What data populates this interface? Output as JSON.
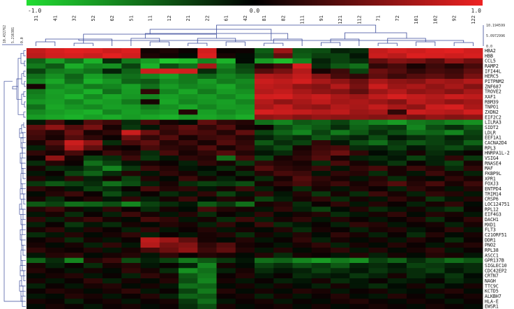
{
  "chart_data": {
    "type": "heatmap",
    "color_scale": {
      "min": -1.0,
      "mid": 0.0,
      "max": 1.0,
      "min_label": "-1.0",
      "mid_label": "0.0",
      "max_label": "1.0",
      "low_color": "#22dd33",
      "mid_color": "#000000",
      "high_color": "#ee2222"
    },
    "columns": [
      "31",
      "41",
      "32",
      "52",
      "62",
      "51",
      "11",
      "12",
      "21",
      "22",
      "61",
      "42",
      "81",
      "82",
      "111",
      "91",
      "121",
      "112",
      "71",
      "72",
      "101",
      "102",
      "92",
      "122"
    ],
    "rows": [
      "HBA2",
      "HBB",
      "CCL5",
      "RAMP2",
      "IFI44L",
      "HERC5",
      "PITPNM2",
      "ZNF687",
      "TROVE2",
      "XAF1",
      "RBM39",
      "TNPO1",
      "ZXDN2",
      "EIF2C2",
      "LILRA3",
      "SIDT2",
      "LDLR",
      "EEF1A1",
      "CACNA2D4",
      "RPL3",
      "HNRPA1L-2",
      "VSIG4",
      "RNASE4",
      "MAF",
      "FKBP9L",
      "XPR1",
      "FOXJ3",
      "ENTPD4",
      "TRIM14",
      "CRSP6",
      "LOC124751",
      "RPL12",
      "EIF4G3",
      "DACH1",
      "MXD1",
      "FLT3",
      "C21ORF51",
      "DDR1",
      "PNO2",
      "RPL38",
      "ASCC1",
      "GPR137B",
      "SIGLEC10",
      "CDC42EP2",
      "CRTN7",
      "NAGH",
      "TTC9C",
      "KCTD5",
      "ALKBH7",
      "HLA-E",
      "EWSR1"
    ],
    "col_dendrogram_scale": [
      "10.194599",
      "5.0972996",
      "0.0"
    ],
    "row_dendrogram_scale": [
      "10.432762",
      "5.216381",
      "0.0"
    ],
    "values": [
      [
        0.82,
        0.9,
        0.95,
        0.93,
        0.86,
        0.92,
        0.08,
        0.12,
        0.05,
        0.88,
        0.04,
        0.06,
        -0.42,
        0.65,
        -0.38,
        -0.35,
        -0.15,
        -0.2,
        0.82,
        0.9,
        0.86,
        0.92,
        0.95,
        0.88
      ],
      [
        0.78,
        0.88,
        0.9,
        0.84,
        0.95,
        0.88,
        0.12,
        0.08,
        -0.05,
        0.92,
        0.1,
        -0.05,
        -0.35,
        0.4,
        -0.42,
        -0.28,
        -0.3,
        -0.1,
        0.85,
        0.78,
        0.92,
        0.9,
        0.86,
        0.9
      ],
      [
        -0.45,
        -0.7,
        -0.5,
        -0.8,
        -0.2,
        -0.55,
        -0.7,
        -0.9,
        -0.85,
        -0.6,
        -0.8,
        -0.05,
        -0.7,
        -0.85,
        -0.6,
        -0.15,
        -0.3,
        -0.2,
        0.4,
        0.55,
        0.5,
        0.35,
        0.6,
        0.45
      ],
      [
        -0.55,
        -0.4,
        -0.78,
        -0.6,
        -0.65,
        -0.3,
        -0.8,
        -0.35,
        -0.5,
        0.7,
        -0.6,
        -0.3,
        0.15,
        0.3,
        0.9,
        -0.2,
        -0.4,
        -0.5,
        0.2,
        0.3,
        0.1,
        0.25,
        0.15,
        0.3
      ],
      [
        -0.3,
        -0.55,
        -0.6,
        -0.5,
        -0.15,
        -0.45,
        0.85,
        0.9,
        0.88,
        -0.2,
        -0.5,
        -0.35,
        0.35,
        0.5,
        0.75,
        0.1,
        0.25,
        -0.3,
        0.45,
        0.35,
        0.2,
        0.3,
        0.25,
        0.4
      ],
      [
        -0.5,
        -0.65,
        -0.45,
        -0.72,
        -0.58,
        -0.5,
        -0.6,
        -0.72,
        -0.55,
        -0.45,
        -0.6,
        -0.5,
        0.75,
        0.7,
        0.82,
        0.55,
        0.3,
        0.2,
        0.4,
        0.25,
        0.35,
        0.4,
        0.3,
        0.5
      ],
      [
        -0.6,
        -0.75,
        -0.5,
        -0.8,
        -0.68,
        -0.45,
        -0.4,
        -0.62,
        -0.55,
        -0.7,
        -0.55,
        -0.62,
        0.85,
        0.8,
        0.88,
        0.7,
        0.6,
        0.45,
        0.7,
        0.6,
        0.55,
        0.7,
        0.65,
        0.75
      ],
      [
        0.1,
        -0.62,
        -0.7,
        -0.55,
        -0.6,
        -0.72,
        -0.5,
        -0.7,
        -0.6,
        -0.65,
        -0.75,
        -0.58,
        0.8,
        0.75,
        0.6,
        0.55,
        0.75,
        0.5,
        0.85,
        0.65,
        0.72,
        0.6,
        0.7,
        0.55
      ],
      [
        -0.55,
        -0.72,
        -0.65,
        -0.8,
        -0.5,
        -0.7,
        0.2,
        -0.6,
        -0.75,
        -0.55,
        -0.7,
        -0.65,
        0.75,
        0.82,
        0.7,
        0.6,
        0.55,
        0.4,
        0.65,
        0.75,
        0.6,
        0.65,
        0.55,
        0.7
      ],
      [
        -0.6,
        -0.7,
        -0.8,
        -0.62,
        -0.75,
        -0.68,
        -0.6,
        -0.72,
        -0.65,
        -0.7,
        -0.6,
        -0.72,
        0.88,
        0.9,
        0.78,
        0.85,
        0.72,
        0.65,
        0.8,
        0.9,
        0.82,
        0.75,
        0.85,
        0.8
      ],
      [
        -0.68,
        -0.72,
        -0.6,
        -0.75,
        -0.7,
        -0.55,
        0.1,
        -0.75,
        -0.6,
        -0.68,
        -0.72,
        -0.6,
        0.75,
        0.6,
        0.7,
        0.8,
        0.68,
        0.72,
        0.65,
        0.55,
        0.78,
        0.7,
        0.6,
        0.68
      ],
      [
        -0.5,
        -0.75,
        -0.68,
        -0.62,
        -0.72,
        -0.7,
        -0.55,
        -0.65,
        -0.75,
        -0.6,
        -0.7,
        -0.68,
        0.7,
        0.82,
        0.65,
        0.6,
        0.75,
        0.7,
        0.82,
        0.7,
        0.6,
        0.85,
        0.9,
        0.72
      ],
      [
        -0.62,
        -0.7,
        -0.75,
        -0.8,
        -0.6,
        -0.72,
        -0.65,
        -0.7,
        0.15,
        -0.72,
        -0.62,
        -0.7,
        0.9,
        0.85,
        0.82,
        0.75,
        0.8,
        0.65,
        0.7,
        0.2,
        0.85,
        0.8,
        0.75,
        0.88
      ],
      [
        -0.7,
        -0.75,
        -0.8,
        -0.72,
        -0.78,
        -0.7,
        -0.75,
        -0.8,
        -0.72,
        -0.75,
        -0.7,
        -0.78,
        0.6,
        0.65,
        0.55,
        0.62,
        0.58,
        0.6,
        0.55,
        0.6,
        0.5,
        0.62,
        0.55,
        0.6
      ],
      [
        -0.1,
        0.3,
        -0.05,
        0.35,
        0.25,
        -0.2,
        0.3,
        0.1,
        -0.05,
        0.4,
        0.2,
        0.15,
        -0.5,
        -0.6,
        -0.4,
        -0.45,
        -0.3,
        -0.5,
        -0.6,
        -0.7,
        -0.55,
        -0.5,
        -0.6,
        -0.65
      ],
      [
        0.4,
        0.6,
        0.35,
        0.5,
        0.1,
        -0.25,
        -0.1,
        0.25,
        0.4,
        0.2,
        0.35,
        0.1,
        0.05,
        -0.35,
        -0.5,
        -0.4,
        -0.2,
        -0.45,
        -0.3,
        -0.25,
        -0.6,
        -0.35,
        -0.2,
        -0.4
      ],
      [
        0.3,
        0.15,
        0.45,
        0.1,
        0.2,
        0.85,
        0.45,
        0.2,
        0.35,
        0.3,
        0.15,
        0.4,
        -0.3,
        -0.45,
        -0.6,
        -0.3,
        -0.55,
        -0.4,
        -0.2,
        -0.35,
        -0.5,
        -0.45,
        -0.6,
        -0.3
      ],
      [
        0.25,
        0.1,
        0.35,
        0.2,
        0.05,
        0.45,
        0.2,
        0.35,
        0.1,
        0.25,
        0.3,
        0.15,
        -0.15,
        -0.3,
        -0.2,
        -0.4,
        -0.25,
        -0.15,
        -0.35,
        -0.1,
        -0.2,
        -0.3,
        -0.15,
        -0.25
      ],
      [
        0.1,
        0.35,
        0.85,
        0.6,
        -0.2,
        0.3,
        0.4,
        0.15,
        0.25,
        0.1,
        0.35,
        0.2,
        -0.4,
        -0.2,
        -0.3,
        0.2,
        -0.1,
        -0.35,
        -0.5,
        -0.25,
        -0.4,
        -0.3,
        -0.2,
        -0.45
      ],
      [
        -0.15,
        0.2,
        0.75,
        0.4,
        0.1,
        0.05,
        0.3,
        0.2,
        0.15,
        0.35,
        0.1,
        0.25,
        -0.2,
        -0.35,
        0.1,
        0.25,
        0.3,
        -0.2,
        -0.15,
        -0.3,
        -0.1,
        -0.25,
        -0.35,
        -0.2
      ],
      [
        0.2,
        0.1,
        0.3,
        0.05,
        0.25,
        0.15,
        -0.2,
        0.3,
        0.1,
        0.2,
        0.35,
        0.15,
        -0.1,
        -0.2,
        0.15,
        0.3,
        0.45,
        0.2,
        -0.05,
        -0.15,
        0.1,
        -0.2,
        -0.1,
        0.05
      ],
      [
        0.05,
        0.6,
        0.1,
        -0.3,
        -0.2,
        0.25,
        -0.25,
        -0.1,
        0.2,
        0.15,
        -0.5,
        0.3,
        -0.3,
        0.1,
        0.2,
        0.35,
        0.1,
        -0.15,
        -0.2,
        -0.1,
        -0.3,
        -0.15,
        0.2,
        -0.25
      ],
      [
        -0.2,
        0.15,
        0.05,
        -0.5,
        -0.3,
        -0.1,
        0.1,
        0.05,
        -0.15,
        0.2,
        0.1,
        -0.25,
        0.2,
        0.15,
        0.1,
        -0.2,
        0.3,
        0.1,
        -0.1,
        -0.25,
        0.05,
        -0.15,
        -0.3,
        0.1
      ],
      [
        0.1,
        -0.2,
        -0.15,
        -0.3,
        -0.6,
        -0.25,
        0.25,
        0.15,
        -0.1,
        -0.05,
        -0.2,
        0.1,
        0.35,
        0.2,
        0.15,
        0.25,
        -0.1,
        0.2,
        0.3,
        0.1,
        0.25,
        0.15,
        -0.2,
        0.2
      ],
      [
        -0.1,
        0.05,
        -0.3,
        -0.45,
        -0.2,
        0.15,
        -0.1,
        0.2,
        0.1,
        -0.15,
        0.05,
        -0.2,
        0.15,
        0.3,
        0.25,
        -0.1,
        0.2,
        0.15,
        -0.2,
        0.1,
        -0.1,
        0.25,
        0.1,
        -0.15
      ],
      [
        0.15,
        -0.1,
        0.2,
        -0.15,
        0.1,
        -0.3,
        0.15,
        -0.05,
        0.25,
        0.1,
        -0.15,
        0.05,
        -0.2,
        0.1,
        0.35,
        0.2,
        0.1,
        -0.1,
        0.15,
        -0.2,
        0.1,
        -0.05,
        0.2,
        0.1
      ],
      [
        -0.25,
        -0.4,
        -0.3,
        -0.2,
        -0.5,
        -0.35,
        -0.15,
        0.1,
        -0.2,
        -0.3,
        -0.25,
        -0.35,
        0.1,
        0.2,
        0.3,
        0.15,
        0.25,
        0.1,
        0.2,
        0.35,
        0.15,
        0.3,
        0.1,
        0.25
      ],
      [
        0.2,
        0.1,
        -0.1,
        -0.3,
        -0.2,
        0.05,
        0.3,
        0.15,
        0.2,
        -0.1,
        0.1,
        0.25,
        -0.15,
        0.05,
        -0.2,
        0.1,
        -0.1,
        0.15,
        0.05,
        -0.15,
        0.2,
        0.1,
        -0.1,
        0.15
      ],
      [
        -0.05,
        0.15,
        0.25,
        0.05,
        -0.35,
        -0.15,
        0.05,
        -0.2,
        -0.1,
        0.2,
        -0.3,
        -0.1,
        0.2,
        -0.1,
        0.15,
        -0.25,
        0.1,
        -0.2,
        0.25,
        0.1,
        -0.15,
        0.2,
        0.15,
        -0.1
      ],
      [
        0.1,
        -0.2,
        0.05,
        0.15,
        -0.1,
        0.2,
        -0.15,
        0.1,
        0.25,
        -0.05,
        0.15,
        0.1,
        -0.3,
        -0.15,
        0.1,
        0.2,
        -0.2,
        0.1,
        -0.1,
        0.2,
        0.1,
        -0.25,
        -0.1,
        0.15
      ],
      [
        -0.4,
        -0.3,
        -0.5,
        -0.45,
        -0.35,
        -0.6,
        -0.3,
        -0.2,
        -0.1,
        -0.4,
        -0.25,
        -0.5,
        0.1,
        0.15,
        -0.2,
        0.05,
        0.2,
        -0.1,
        0.15,
        0.05,
        -0.15,
        0.1,
        0.2,
        -0.05
      ],
      [
        0.15,
        0.25,
        0.1,
        -0.1,
        0.2,
        0.05,
        -0.2,
        0.1,
        -0.05,
        0.3,
        0.15,
        0.1,
        -0.1,
        0.2,
        -0.15,
        -0.3,
        -0.05,
        0.15,
        -0.2,
        -0.1,
        0.1,
        -0.15,
        -0.25,
        0.05
      ],
      [
        -0.1,
        0.1,
        -0.2,
        0.05,
        -0.15,
        0.25,
        0.1,
        -0.1,
        0.15,
        -0.2,
        0.05,
        -0.1,
        0.2,
        -0.05,
        0.1,
        0.15,
        -0.2,
        -0.1,
        0.1,
        0.2,
        -0.05,
        0.15,
        0.1,
        -0.1
      ],
      [
        0.2,
        -0.15,
        0.15,
        0.25,
        0.1,
        -0.05,
        0.3,
        0.2,
        -0.1,
        0.1,
        -0.2,
        0.25,
        -0.15,
        0.1,
        0.2,
        -0.1,
        0.15,
        0.05,
        -0.1,
        0.05,
        0.15,
        -0.2,
        0.05,
        0.2
      ],
      [
        -0.15,
        0.05,
        -0.25,
        -0.1,
        -0.2,
        0.1,
        -0.05,
        0.15,
        0.1,
        -0.15,
        0.2,
        -0.05,
        0.25,
        -0.2,
        -0.1,
        0.05,
        -0.15,
        0.2,
        0.15,
        -0.1,
        0.05,
        0.1,
        -0.15,
        0.1
      ],
      [
        0.1,
        0.2,
        -0.1,
        0.15,
        0.05,
        -0.15,
        0.2,
        -0.1,
        0.05,
        0.15,
        -0.1,
        0.1,
        -0.05,
        0.15,
        -0.2,
        0.1,
        0.05,
        -0.15,
        0.1,
        0.15,
        -0.1,
        0.05,
        0.2,
        -0.1
      ],
      [
        -0.2,
        -0.1,
        0.15,
        -0.05,
        0.1,
        0.2,
        -0.15,
        0.05,
        -0.1,
        0.1,
        0.15,
        -0.2,
        0.1,
        -0.1,
        0.15,
        -0.05,
        0.2,
        0.1,
        -0.15,
        0.05,
        -0.2,
        0.15,
        -0.05,
        0.1
      ],
      [
        0.05,
        0.15,
        -0.2,
        0.1,
        -0.1,
        0.05,
        0.8,
        0.65,
        0.4,
        0.1,
        -0.05,
        0.15,
        -0.1,
        0.05,
        0.2,
        -0.15,
        0.1,
        -0.05,
        0.1,
        -0.1,
        0.15,
        0.05,
        -0.2,
        0.05
      ],
      [
        0.1,
        -0.05,
        0.1,
        -0.15,
        0.2,
        -0.1,
        0.75,
        0.5,
        0.55,
        0.2,
        0.35,
        0.1,
        0.05,
        -0.1,
        0.1,
        0.2,
        -0.15,
        0.1,
        -0.05,
        0.15,
        0.05,
        -0.1,
        0.1,
        0.15
      ],
      [
        0.2,
        0.1,
        0.05,
        0.15,
        -0.1,
        0.1,
        0.3,
        0.45,
        0.6,
        0.25,
        0.4,
        0.15,
        -0.1,
        0.15,
        -0.05,
        0.1,
        0.2,
        -0.1,
        0.15,
        -0.05,
        0.1,
        0.2,
        -0.1,
        0.05
      ],
      [
        -0.1,
        0.15,
        0.2,
        -0.05,
        0.1,
        0.15,
        -0.1,
        0.2,
        0.05,
        0.15,
        0.1,
        -0.05,
        0.15,
        -0.2,
        0.1,
        0.05,
        -0.1,
        0.15,
        -0.15,
        0.1,
        -0.05,
        0.15,
        0.1,
        -0.1
      ],
      [
        -0.45,
        -0.2,
        -0.6,
        0.15,
        0.25,
        -0.35,
        -0.15,
        -0.3,
        -0.55,
        -0.4,
        -0.25,
        -0.1,
        -0.5,
        -0.45,
        -0.6,
        -0.7,
        -0.55,
        -0.65,
        -0.3,
        -0.45,
        -0.2,
        -0.35,
        -0.5,
        -0.4
      ],
      [
        0.1,
        -0.15,
        0.05,
        -0.2,
        0.1,
        0.15,
        -0.1,
        0.05,
        -0.15,
        -0.6,
        0.1,
        -0.05,
        -0.3,
        -0.2,
        -0.35,
        -0.25,
        -0.4,
        -0.15,
        -0.2,
        -0.1,
        -0.3,
        -0.25,
        -0.15,
        -0.2
      ],
      [
        0.15,
        0.05,
        -0.1,
        0.1,
        -0.05,
        0.2,
        0.1,
        -0.2,
        -0.65,
        -0.5,
        -0.15,
        0.1,
        -0.2,
        -0.1,
        -0.15,
        -0.3,
        -0.2,
        -0.1,
        -0.25,
        -0.15,
        -0.2,
        -0.3,
        -0.1,
        -0.2
      ],
      [
        -0.05,
        0.1,
        0.15,
        -0.1,
        0.05,
        -0.15,
        0.2,
        0.1,
        -0.4,
        -0.55,
        0.05,
        0.15,
        -0.1,
        0.05,
        -0.2,
        -0.15,
        -0.1,
        -0.25,
        -0.15,
        0.1,
        -0.2,
        -0.1,
        -0.25,
        -0.05
      ],
      [
        0.1,
        -0.1,
        0.05,
        0.2,
        -0.15,
        0.1,
        -0.05,
        0.15,
        -0.35,
        -0.6,
        0.1,
        -0.1,
        0.05,
        -0.15,
        -0.1,
        0.1,
        -0.2,
        -0.1,
        0.05,
        -0.15,
        -0.1,
        0.05,
        -0.2,
        -0.1
      ],
      [
        -0.15,
        0.05,
        -0.1,
        0.1,
        0.15,
        -0.05,
        0.1,
        -0.1,
        -0.5,
        -0.45,
        -0.05,
        0.1,
        -0.1,
        0.1,
        -0.05,
        -0.15,
        0.1,
        -0.1,
        -0.2,
        -0.05,
        0.1,
        -0.15,
        -0.05,
        0.1
      ],
      [
        0.05,
        0.15,
        0.1,
        -0.05,
        0.1,
        0.2,
        -0.1,
        0.05,
        -0.3,
        -0.55,
        0.15,
        -0.05,
        0.1,
        -0.05,
        0.15,
        0.1,
        -0.1,
        0.05,
        0.1,
        -0.1,
        -0.05,
        0.1,
        0.15,
        -0.05
      ],
      [
        -0.1,
        -0.05,
        0.15,
        0.1,
        -0.1,
        0.05,
        0.15,
        -0.15,
        -0.45,
        -0.4,
        0.05,
        0.1,
        -0.15,
        0.1,
        -0.1,
        0.05,
        0.15,
        -0.05,
        -0.1,
        0.15,
        0.05,
        -0.1,
        0.05,
        0.1
      ],
      [
        0.1,
        0.05,
        -0.15,
        0.05,
        0.1,
        -0.1,
        0.05,
        0.1,
        -0.25,
        -0.5,
        -0.1,
        0.05,
        0.1,
        -0.1,
        0.05,
        -0.05,
        0.1,
        0.15,
        0.05,
        -0.05,
        0.1,
        0.05,
        -0.1,
        0.05
      ],
      [
        -0.05,
        0.1,
        0.05,
        -0.1,
        0.05,
        0.1,
        -0.05,
        0.05,
        -0.2,
        -0.35,
        0.1,
        -0.05,
        0.05,
        0.1,
        -0.05,
        0.1,
        -0.05,
        0.05,
        0.1,
        0.05,
        -0.05,
        0.1,
        0.05,
        -0.05
      ]
    ]
  }
}
